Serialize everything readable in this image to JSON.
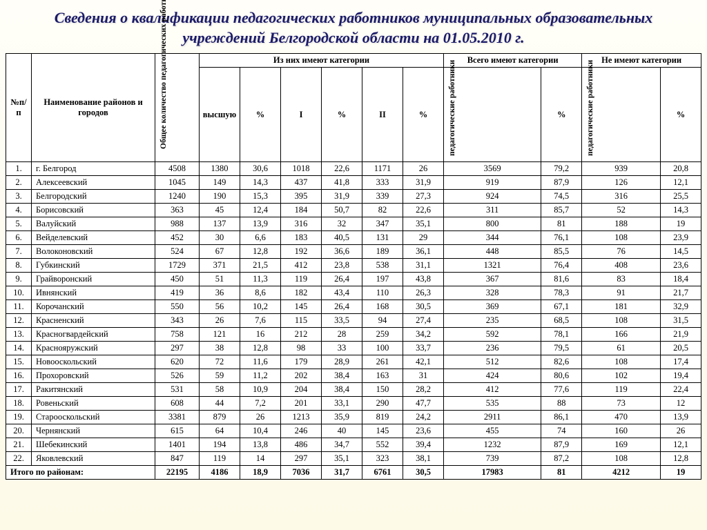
{
  "title": "Сведения о квалификации педагогических работников муниципальных образовательных учреждений Белгородской области на 01.05.2010 г.",
  "headers": {
    "num": "№п/п",
    "name": "Наименование районов и городов",
    "total": "Общее количество педагогических работников",
    "categories": "Из них имеют категории",
    "highest": "высшую",
    "pct": "%",
    "first": "I",
    "second": "II",
    "have_total": "Всего имеют категории",
    "no_cat": "Не имеют категории",
    "ped": "педагогические работники"
  },
  "rows": [
    {
      "n": "1.",
      "name": "г. Белгород",
      "t": "4508",
      "h": "1380",
      "hp": "30,6",
      "i": "1018",
      "ip": "22,6",
      "ii": "1171",
      "iip": "26",
      "tc": "3569",
      "tcp": "79,2",
      "nc": "939",
      "ncp": "20,8"
    },
    {
      "n": "2.",
      "name": "Алексеевский",
      "t": "1045",
      "h": "149",
      "hp": "14,3",
      "i": "437",
      "ip": "41,8",
      "ii": "333",
      "iip": "31,9",
      "tc": "919",
      "tcp": "87,9",
      "nc": "126",
      "ncp": "12,1"
    },
    {
      "n": "3.",
      "name": "Белгородский",
      "t": "1240",
      "h": "190",
      "hp": "15,3",
      "i": "395",
      "ip": "31,9",
      "ii": "339",
      "iip": "27,3",
      "tc": "924",
      "tcp": "74,5",
      "nc": "316",
      "ncp": "25,5"
    },
    {
      "n": "4.",
      "name": "Борисовский",
      "t": "363",
      "h": "45",
      "hp": "12,4",
      "i": "184",
      "ip": "50,7",
      "ii": "82",
      "iip": "22,6",
      "tc": "311",
      "tcp": "85,7",
      "nc": "52",
      "ncp": "14,3"
    },
    {
      "n": "5.",
      "name": "Валуйский",
      "t": "988",
      "h": "137",
      "hp": "13,9",
      "i": "316",
      "ip": "32",
      "ii": "347",
      "iip": "35,1",
      "tc": "800",
      "tcp": "81",
      "nc": "188",
      "ncp": "19"
    },
    {
      "n": "6.",
      "name": "Вейделевский",
      "t": "452",
      "h": "30",
      "hp": "6,6",
      "i": "183",
      "ip": "40,5",
      "ii": "131",
      "iip": "29",
      "tc": "344",
      "tcp": "76,1",
      "nc": "108",
      "ncp": "23,9"
    },
    {
      "n": "7.",
      "name": "Волоконовский",
      "t": "524",
      "h": "67",
      "hp": "12,8",
      "i": "192",
      "ip": "36,6",
      "ii": "189",
      "iip": "36,1",
      "tc": "448",
      "tcp": "85,5",
      "nc": "76",
      "ncp": "14,5"
    },
    {
      "n": "8.",
      "name": "Губкинский",
      "t": "1729",
      "h": "371",
      "hp": "21,5",
      "i": "412",
      "ip": "23,8",
      "ii": "538",
      "iip": "31,1",
      "tc": "1321",
      "tcp": "76,4",
      "nc": "408",
      "ncp": "23,6"
    },
    {
      "n": "9.",
      "name": "Грайворонский",
      "t": "450",
      "h": "51",
      "hp": "11,3",
      "i": "119",
      "ip": "26,4",
      "ii": "197",
      "iip": "43,8",
      "tc": "367",
      "tcp": "81,6",
      "nc": "83",
      "ncp": "18,4"
    },
    {
      "n": "10.",
      "name": "Ивнянский",
      "t": "419",
      "h": "36",
      "hp": "8,6",
      "i": "182",
      "ip": "43,4",
      "ii": "110",
      "iip": "26,3",
      "tc": "328",
      "tcp": "78,3",
      "nc": "91",
      "ncp": "21,7"
    },
    {
      "n": "11.",
      "name": "Корочанский",
      "t": "550",
      "h": "56",
      "hp": "10,2",
      "i": "145",
      "ip": "26,4",
      "ii": "168",
      "iip": "30,5",
      "tc": "369",
      "tcp": "67,1",
      "nc": "181",
      "ncp": "32,9"
    },
    {
      "n": "12.",
      "name": "Красненский",
      "t": "343",
      "h": "26",
      "hp": "7,6",
      "i": "115",
      "ip": "33,5",
      "ii": "94",
      "iip": "27,4",
      "tc": "235",
      "tcp": "68,5",
      "nc": "108",
      "ncp": "31,5"
    },
    {
      "n": "13.",
      "name": "Красногвардейский",
      "t": "758",
      "h": "121",
      "hp": "16",
      "i": "212",
      "ip": "28",
      "ii": "259",
      "iip": "34,2",
      "tc": "592",
      "tcp": "78,1",
      "nc": "166",
      "ncp": "21,9"
    },
    {
      "n": "14.",
      "name": "Краснояружский",
      "t": "297",
      "h": "38",
      "hp": "12,8",
      "i": "98",
      "ip": "33",
      "ii": "100",
      "iip": "33,7",
      "tc": "236",
      "tcp": "79,5",
      "nc": "61",
      "ncp": "20,5"
    },
    {
      "n": "15.",
      "name": "Новооскольский",
      "t": "620",
      "h": "72",
      "hp": "11,6",
      "i": "179",
      "ip": "28,9",
      "ii": "261",
      "iip": "42,1",
      "tc": "512",
      "tcp": "82,6",
      "nc": "108",
      "ncp": "17,4"
    },
    {
      "n": "16.",
      "name": "Прохоровский",
      "t": "526",
      "h": "59",
      "hp": "11,2",
      "i": "202",
      "ip": "38,4",
      "ii": "163",
      "iip": "31",
      "tc": "424",
      "tcp": "80,6",
      "nc": "102",
      "ncp": "19,4"
    },
    {
      "n": "17.",
      "name": "Ракитянский",
      "t": "531",
      "h": "58",
      "hp": "10,9",
      "i": "204",
      "ip": "38,4",
      "ii": "150",
      "iip": "28,2",
      "tc": "412",
      "tcp": "77,6",
      "nc": "119",
      "ncp": "22,4"
    },
    {
      "n": "18.",
      "name": "Ровеньский",
      "t": "608",
      "h": "44",
      "hp": "7,2",
      "i": "201",
      "ip": "33,1",
      "ii": "290",
      "iip": "47,7",
      "tc": "535",
      "tcp": "88",
      "nc": "73",
      "ncp": "12"
    },
    {
      "n": "19.",
      "name": "Старооскольский",
      "t": "3381",
      "h": "879",
      "hp": "26",
      "i": "1213",
      "ip": "35,9",
      "ii": "819",
      "iip": "24,2",
      "tc": "2911",
      "tcp": "86,1",
      "nc": "470",
      "ncp": "13,9"
    },
    {
      "n": "20.",
      "name": "Чернянский",
      "t": "615",
      "h": "64",
      "hp": "10,4",
      "i": "246",
      "ip": "40",
      "ii": "145",
      "iip": "23,6",
      "tc": "455",
      "tcp": "74",
      "nc": "160",
      "ncp": "26"
    },
    {
      "n": "21.",
      "name": "Шебекинский",
      "t": "1401",
      "h": "194",
      "hp": "13,8",
      "i": "486",
      "ip": "34,7",
      "ii": "552",
      "iip": "39,4",
      "tc": "1232",
      "tcp": "87,9",
      "nc": "169",
      "ncp": "12,1"
    },
    {
      "n": "22.",
      "name": "Яковлевский",
      "t": "847",
      "h": "119",
      "hp": "14",
      "i": "297",
      "ip": "35,1",
      "ii": "323",
      "iip": "38,1",
      "tc": "739",
      "tcp": "87,2",
      "nc": "108",
      "ncp": "12,8"
    }
  ],
  "totals": {
    "label": "Итого по районам:",
    "t": "22195",
    "h": "4186",
    "hp": "18,9",
    "i": "7036",
    "ip": "31,7",
    "ii": "6761",
    "iip": "30,5",
    "tc": "17983",
    "tcp": "81",
    "nc": "4212",
    "ncp": "19"
  },
  "style": {
    "title_color": "#1a1a6a",
    "bg_top": "#fffef8",
    "bg_bottom": "#fdfae8",
    "border": "#000000",
    "font_body": 12.5,
    "font_title": 22
  }
}
